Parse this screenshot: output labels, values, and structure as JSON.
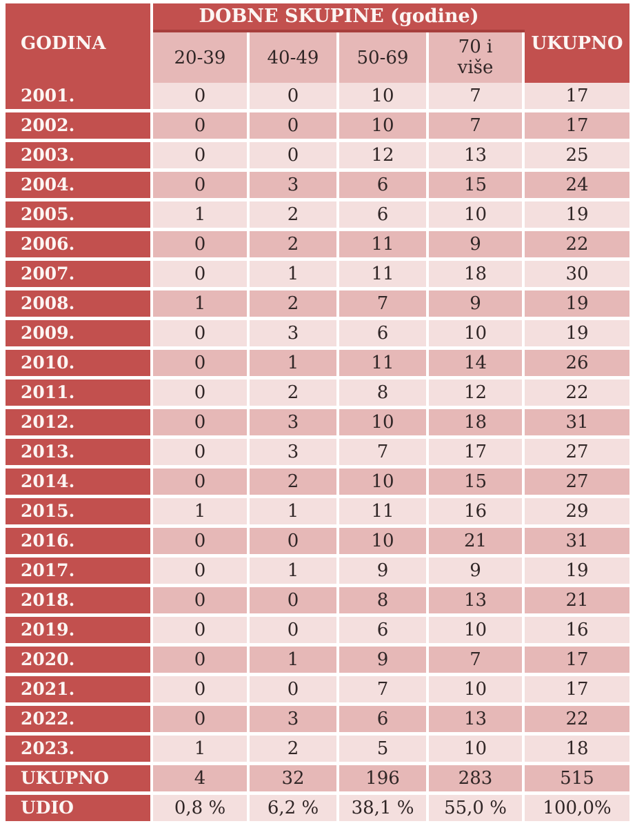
{
  "table": {
    "header": {
      "year_label": "GODINA",
      "group_label": "DOBNE SKUPINE (godine)",
      "age_groups": [
        "20-39",
        "40-49",
        "50-69",
        "70 i više"
      ],
      "total_label": "UKUPNO"
    },
    "columns": [
      "GODINA",
      "20-39",
      "40-49",
      "50-69",
      "70 i više",
      "UKUPNO"
    ],
    "rows": [
      {
        "label": "2001.",
        "values": [
          "0",
          "0",
          "10",
          "7",
          "17"
        ]
      },
      {
        "label": "2002.",
        "values": [
          "0",
          "0",
          "10",
          "7",
          "17"
        ]
      },
      {
        "label": "2003.",
        "values": [
          "0",
          "0",
          "12",
          "13",
          "25"
        ]
      },
      {
        "label": "2004.",
        "values": [
          "0",
          "3",
          "6",
          "15",
          "24"
        ]
      },
      {
        "label": "2005.",
        "values": [
          "1",
          "2",
          "6",
          "10",
          "19"
        ]
      },
      {
        "label": "2006.",
        "values": [
          "0",
          "2",
          "11",
          "9",
          "22"
        ]
      },
      {
        "label": "2007.",
        "values": [
          "0",
          "1",
          "11",
          "18",
          "30"
        ]
      },
      {
        "label": "2008.",
        "values": [
          "1",
          "2",
          "7",
          "9",
          "19"
        ]
      },
      {
        "label": "2009.",
        "values": [
          "0",
          "3",
          "6",
          "10",
          "19"
        ]
      },
      {
        "label": "2010.",
        "values": [
          "0",
          "1",
          "11",
          "14",
          "26"
        ]
      },
      {
        "label": "2011.",
        "values": [
          "0",
          "2",
          "8",
          "12",
          "22"
        ]
      },
      {
        "label": "2012.",
        "values": [
          "0",
          "3",
          "10",
          "18",
          "31"
        ]
      },
      {
        "label": "2013.",
        "values": [
          "0",
          "3",
          "7",
          "17",
          "27"
        ]
      },
      {
        "label": "2014.",
        "values": [
          "0",
          "2",
          "10",
          "15",
          "27"
        ]
      },
      {
        "label": "2015.",
        "values": [
          "1",
          "1",
          "11",
          "16",
          "29"
        ]
      },
      {
        "label": "2016.",
        "values": [
          "0",
          "0",
          "10",
          "21",
          "31"
        ]
      },
      {
        "label": "2017.",
        "values": [
          "0",
          "1",
          "9",
          "9",
          "19"
        ]
      },
      {
        "label": "2018.",
        "values": [
          "0",
          "0",
          "8",
          "13",
          "21"
        ]
      },
      {
        "label": "2019.",
        "values": [
          "0",
          "0",
          "6",
          "10",
          "16"
        ]
      },
      {
        "label": "2020.",
        "values": [
          "0",
          "1",
          "9",
          "7",
          "17"
        ]
      },
      {
        "label": "2021.",
        "values": [
          "0",
          "0",
          "7",
          "10",
          "17"
        ]
      },
      {
        "label": "2022.",
        "values": [
          "0",
          "3",
          "6",
          "13",
          "22"
        ]
      },
      {
        "label": "2023.",
        "values": [
          "1",
          "2",
          "5",
          "10",
          "18"
        ]
      },
      {
        "label": "UKUPNO",
        "values": [
          "4",
          "32",
          "196",
          "283",
          "515"
        ]
      },
      {
        "label": "UDIO",
        "values": [
          "0,8 %",
          "6,2 %",
          "38,1 %",
          "55,0 %",
          "100,0%"
        ]
      }
    ],
    "colors": {
      "header_bg": "#c2504e",
      "header_divider": "#a63e3c",
      "row_light": "#f4dfde",
      "row_medium": "#e6b8b7",
      "text_light": "#fcf5f3",
      "text_dark": "#302626",
      "grid": "#ffffff"
    }
  }
}
